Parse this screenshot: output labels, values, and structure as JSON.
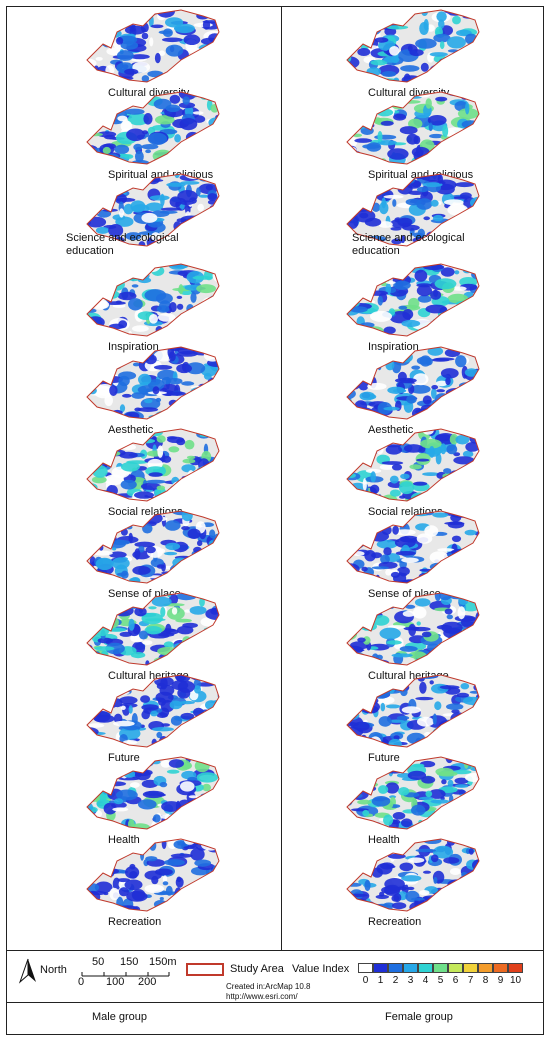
{
  "panels": [
    {
      "male": "Cultural diversity",
      "female": "Cultural diversity"
    },
    {
      "male": "Spiritual and religious",
      "female": "Spiritual and religious"
    },
    {
      "male": "Science and ecological education",
      "female": "Science and ecological education"
    },
    {
      "male": "Inspiration",
      "female": "Inspiration"
    },
    {
      "male": "Aesthetic",
      "female": "Aesthetic"
    },
    {
      "male": "Social relations",
      "female": "Social relations"
    },
    {
      "male": "Sense of place",
      "female": "Sense of place"
    },
    {
      "male": "Cultural heritage",
      "female": "Cultural heritage"
    },
    {
      "male": "Future",
      "female": "Future"
    },
    {
      "male": "Health",
      "female": "Health"
    },
    {
      "male": "Recreation",
      "female": "Recreation"
    }
  ],
  "legend": {
    "north_label": "North",
    "north_icon": "north-arrow-icon",
    "scale_top": [
      "50",
      "150",
      "150m"
    ],
    "scale_bottom": [
      "0",
      "100",
      "200"
    ],
    "study_area_label": "Study Area",
    "study_area_color": "#c0392b",
    "value_index_label": "Value Index",
    "created_text": "Created in:ArcMap 10.8",
    "url_text": "http://www.esri.com/",
    "value_ticks": [
      "0",
      "1",
      "2",
      "3",
      "4",
      "5",
      "6",
      "7",
      "8",
      "9",
      "10"
    ],
    "value_colors": [
      "#ffffff",
      "#1f2fd6",
      "#1f6fe0",
      "#27a8e8",
      "#2fd3d3",
      "#6fe08a",
      "#c4e85a",
      "#f1d23a",
      "#f39c2b",
      "#ec6a22",
      "#e0401c"
    ]
  },
  "groups": {
    "male": "Male group",
    "female": "Female group"
  }
}
